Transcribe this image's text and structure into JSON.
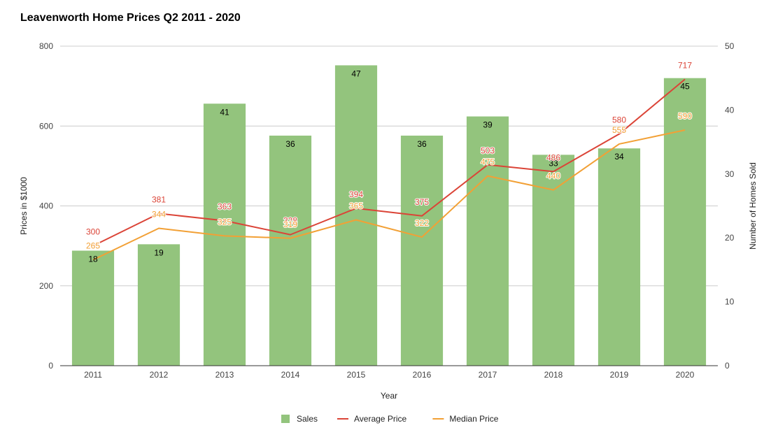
{
  "chart_data": {
    "type": "bar",
    "title": "Leavenworth Home Prices Q2 2011 - 2020",
    "xlabel": "Year",
    "ylabel": "Prices in $1000",
    "y2label": "Number of Homes Sold",
    "ylim": [
      0,
      800
    ],
    "y2lim": [
      0,
      50
    ],
    "yticks": [
      "0",
      "200",
      "400",
      "600",
      "800"
    ],
    "y2ticks": [
      "0",
      "10",
      "20",
      "30",
      "40",
      "50"
    ],
    "categories": [
      "2011",
      "2012",
      "2013",
      "2014",
      "2015",
      "2016",
      "2017",
      "2018",
      "2019",
      "2020"
    ],
    "legend_position": "bottom",
    "grid": true,
    "series": [
      {
        "name": "Sales",
        "type": "bar",
        "axis": "right",
        "color": "#93c47d",
        "values": [
          18,
          19,
          41,
          36,
          47,
          36,
          39,
          33,
          34,
          45
        ]
      },
      {
        "name": "Average Price",
        "type": "line",
        "axis": "left",
        "color": "#db4437",
        "values": [
          300,
          381,
          363,
          328,
          394,
          375,
          503,
          486,
          580,
          717
        ]
      },
      {
        "name": "Median Price",
        "type": "line",
        "axis": "left",
        "color": "#f2a035",
        "values": [
          265,
          344,
          325,
          319,
          365,
          322,
          475,
          440,
          555,
          590
        ]
      }
    ]
  }
}
